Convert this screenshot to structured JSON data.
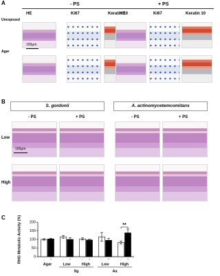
{
  "panel_a": {
    "label": "A",
    "groups": [
      "- PS",
      "+ PS"
    ],
    "columns": [
      "HE",
      "Ki67",
      "Keratin 10"
    ],
    "rows": [
      "Unexposed",
      "Agar"
    ],
    "scale_bar": "100µm"
  },
  "panel_b": {
    "label": "B",
    "species": [
      "S. gordonii",
      "A. actinomycetemcomitans"
    ],
    "conditions": [
      "- PS",
      "+ PS"
    ],
    "rows": [
      "Low",
      "High"
    ],
    "scale_bar": "100µm"
  },
  "chart_data": {
    "type": "bar",
    "label": "C",
    "y_label": "RHG Metabolic Activity (%)",
    "categories": [
      "Agar",
      "Low",
      "High",
      "Low",
      "High"
    ],
    "groups": [
      "Sg",
      "Aa"
    ],
    "series": [
      {
        "name": "-",
        "color": "#ffffff",
        "values": [
          100,
          115,
          103,
          115,
          82
        ],
        "errors": [
          4,
          8,
          6,
          25,
          8
        ]
      },
      {
        "name": "+",
        "color": "#000000",
        "values": [
          103,
          100,
          97,
          95,
          138
        ],
        "errors": [
          3,
          10,
          4,
          10,
          22
        ]
      }
    ],
    "ylim": [
      0,
      200
    ],
    "yticks": [
      0,
      50,
      100,
      150,
      200
    ],
    "annotation": "**"
  }
}
